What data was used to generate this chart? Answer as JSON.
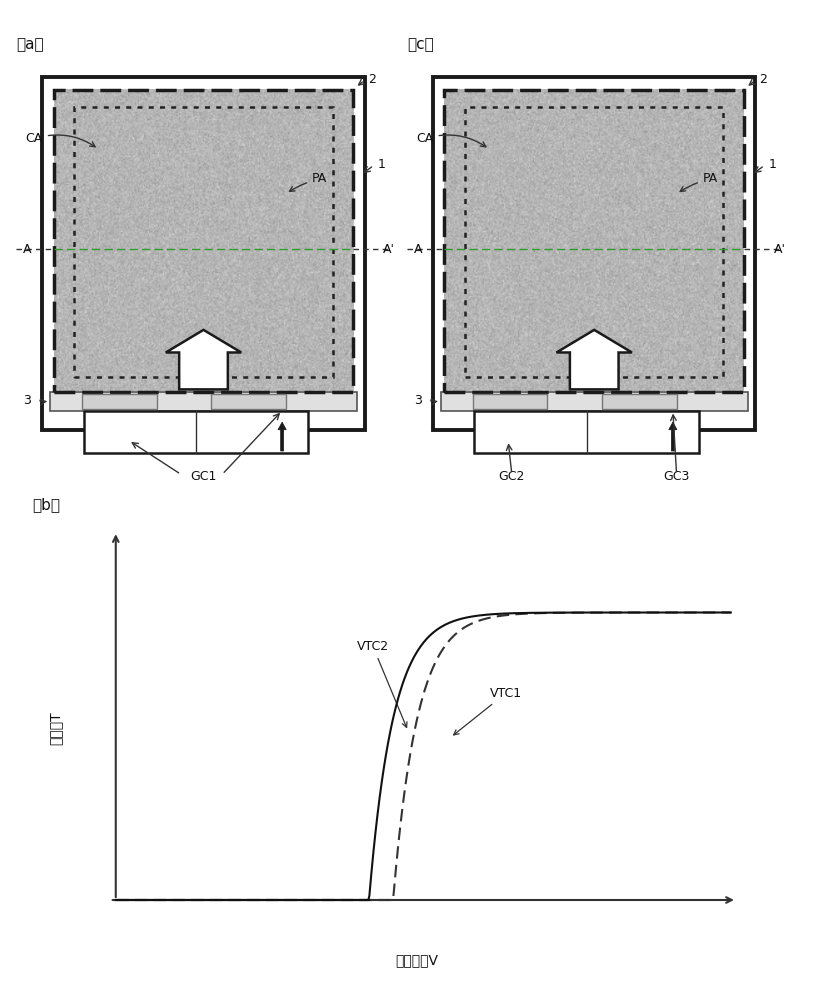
{
  "bg_color": "#ffffff",
  "gray_fill": "#b4b4b4",
  "outer_border": "#1a1a1a",
  "label_a": "（a）",
  "label_b": "（b）",
  "label_c": "（c）",
  "ylabel_b": "透射率T",
  "xlabel_b": "施加电压V"
}
